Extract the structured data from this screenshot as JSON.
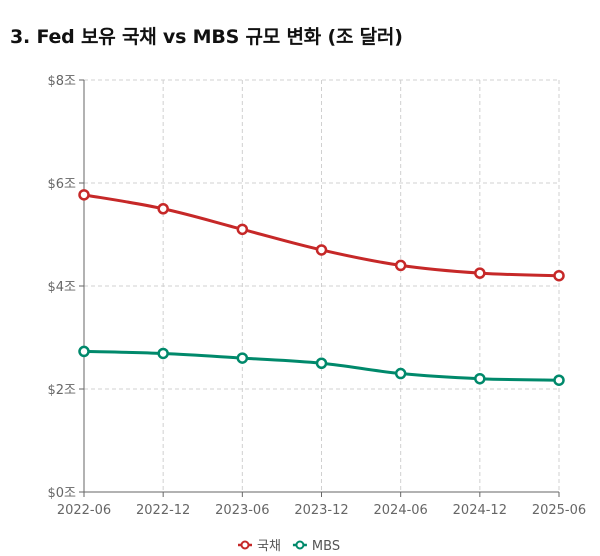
{
  "title": "3. Fed 보유 국채 vs MBS 규모 변화 (조 달러)",
  "chart_data": {
    "type": "line",
    "title": "3. Fed 보유 국채 vs MBS 규모 변화 (조 달러)",
    "x": [
      "2022-06",
      "2022-12",
      "2023-06",
      "2023-12",
      "2024-06",
      "2024-12",
      "2025-06"
    ],
    "yticks": [
      "$0조",
      "$2조",
      "$4조",
      "$6조",
      "$8조"
    ],
    "ytick_values": [
      0,
      2,
      4,
      6,
      8
    ],
    "ylim": [
      0,
      8
    ],
    "grid": true,
    "legend_position": "bottom",
    "series": [
      {
        "name": "국채",
        "color": "#c62828",
        "values": [
          5.77,
          5.5,
          5.1,
          4.7,
          4.4,
          4.25,
          4.2
        ]
      },
      {
        "name": "MBS",
        "color": "#00896b",
        "values": [
          2.73,
          2.69,
          2.6,
          2.5,
          2.3,
          2.2,
          2.17
        ]
      }
    ]
  }
}
